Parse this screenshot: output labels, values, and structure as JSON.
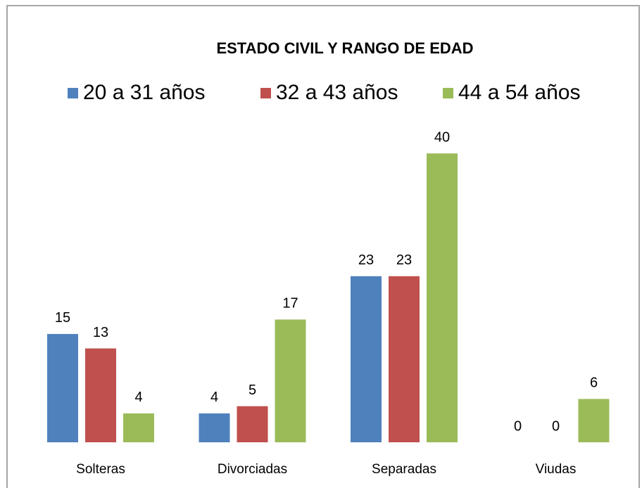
{
  "chart_data": {
    "type": "bar",
    "title": "ESTADO CIVIL  Y RANGO DE EDAD",
    "categories": [
      "Solteras",
      "Divorciadas",
      "Separadas",
      "Viudas"
    ],
    "series": [
      {
        "name": "20 a 31 años",
        "color": "#4f81bd",
        "values": [
          15,
          4,
          23,
          0
        ]
      },
      {
        "name": "32 a 43 años",
        "color": "#c0504d",
        "values": [
          13,
          5,
          23,
          0
        ]
      },
      {
        "name": "44 a 54 años",
        "color": "#9bbb59",
        "values": [
          4,
          17,
          40,
          6
        ]
      }
    ],
    "legend": "top"
  }
}
